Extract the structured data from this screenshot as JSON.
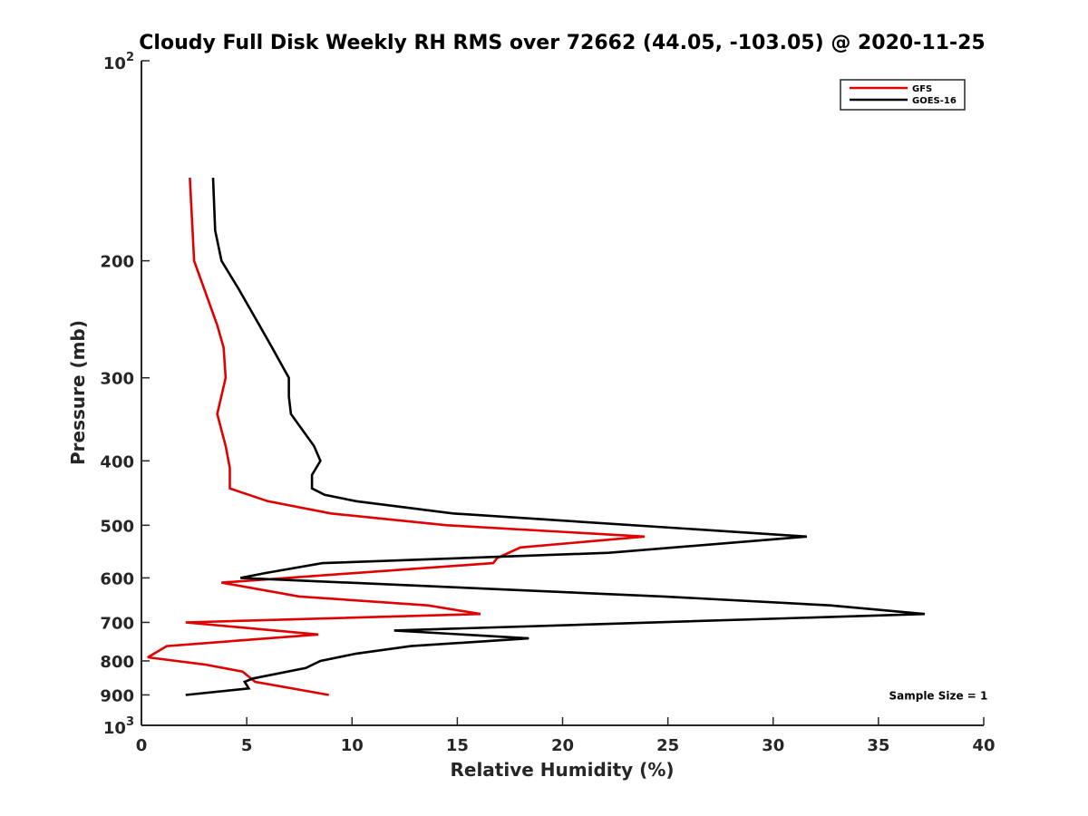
{
  "chart_data": {
    "type": "line",
    "title": "Cloudy Full Disk Weekly RH RMS over 72662 (44.05, -103.05) @ 2020-11-25",
    "xlabel": "Relative Humidity (%)",
    "ylabel": "Pressure (mb)",
    "xlim": [
      0,
      40
    ],
    "ylim": [
      100,
      1000
    ],
    "yscale": "log",
    "y_reversed": true,
    "grid": false,
    "legend_position": "top-right",
    "x_ticks": [
      0,
      5,
      10,
      15,
      20,
      25,
      30,
      35,
      40
    ],
    "x_tick_labels": [
      "0",
      "5",
      "10",
      "15",
      "20",
      "25",
      "30",
      "35",
      "40"
    ],
    "y_ticks": [
      200,
      300,
      400,
      500,
      600,
      700,
      800,
      900
    ],
    "y_tick_labels": [
      "200",
      "300",
      "400",
      "500",
      "600",
      "700",
      "800",
      "900"
    ],
    "y_end_ticks": [
      {
        "value": 100,
        "base": "10",
        "exp": "2"
      },
      {
        "value": 1000,
        "base": "10",
        "exp": "3"
      }
    ],
    "series": [
      {
        "name": "GFS",
        "color": "#e00000",
        "points": [
          [
            2.3,
            150
          ],
          [
            2.5,
            200
          ],
          [
            3.6,
            250
          ],
          [
            3.9,
            270
          ],
          [
            4.0,
            300
          ],
          [
            3.6,
            340
          ],
          [
            4.0,
            380
          ],
          [
            4.2,
            410
          ],
          [
            4.2,
            440
          ],
          [
            6.0,
            460
          ],
          [
            9.0,
            480
          ],
          [
            14.5,
            500
          ],
          [
            23.9,
            520
          ],
          [
            18.0,
            540
          ],
          [
            16.9,
            560
          ],
          [
            16.7,
            570
          ],
          [
            3.8,
            610
          ],
          [
            7.5,
            640
          ],
          [
            13.6,
            660
          ],
          [
            16.1,
            680
          ],
          [
            2.1,
            700
          ],
          [
            8.4,
            730
          ],
          [
            1.2,
            760
          ],
          [
            0.3,
            790
          ],
          [
            3.0,
            810
          ],
          [
            4.8,
            830
          ],
          [
            5.4,
            860
          ],
          [
            8.9,
            900
          ]
        ]
      },
      {
        "name": "GOES-16",
        "color": "#000000",
        "points": [
          [
            3.4,
            150
          ],
          [
            3.5,
            180
          ],
          [
            3.8,
            200
          ],
          [
            4.6,
            220
          ],
          [
            5.6,
            250
          ],
          [
            6.2,
            270
          ],
          [
            7.0,
            300
          ],
          [
            7.0,
            320
          ],
          [
            7.1,
            340
          ],
          [
            8.2,
            380
          ],
          [
            8.5,
            400
          ],
          [
            8.1,
            420
          ],
          [
            8.1,
            440
          ],
          [
            8.7,
            450
          ],
          [
            10.2,
            460
          ],
          [
            14.8,
            480
          ],
          [
            31.6,
            520
          ],
          [
            22.2,
            550
          ],
          [
            8.6,
            570
          ],
          [
            5.9,
            590
          ],
          [
            4.7,
            600
          ],
          [
            24.8,
            640
          ],
          [
            32.7,
            660
          ],
          [
            37.2,
            680
          ],
          [
            12.0,
            720
          ],
          [
            18.4,
            740
          ],
          [
            12.8,
            760
          ],
          [
            10.2,
            780
          ],
          [
            8.5,
            800
          ],
          [
            7.8,
            820
          ],
          [
            5.3,
            850
          ],
          [
            4.9,
            860
          ],
          [
            5.1,
            880
          ],
          [
            2.1,
            900
          ]
        ]
      }
    ],
    "annotations": [
      {
        "text": "Sample Size = 1",
        "x": 35.5,
        "y": 900
      }
    ]
  }
}
